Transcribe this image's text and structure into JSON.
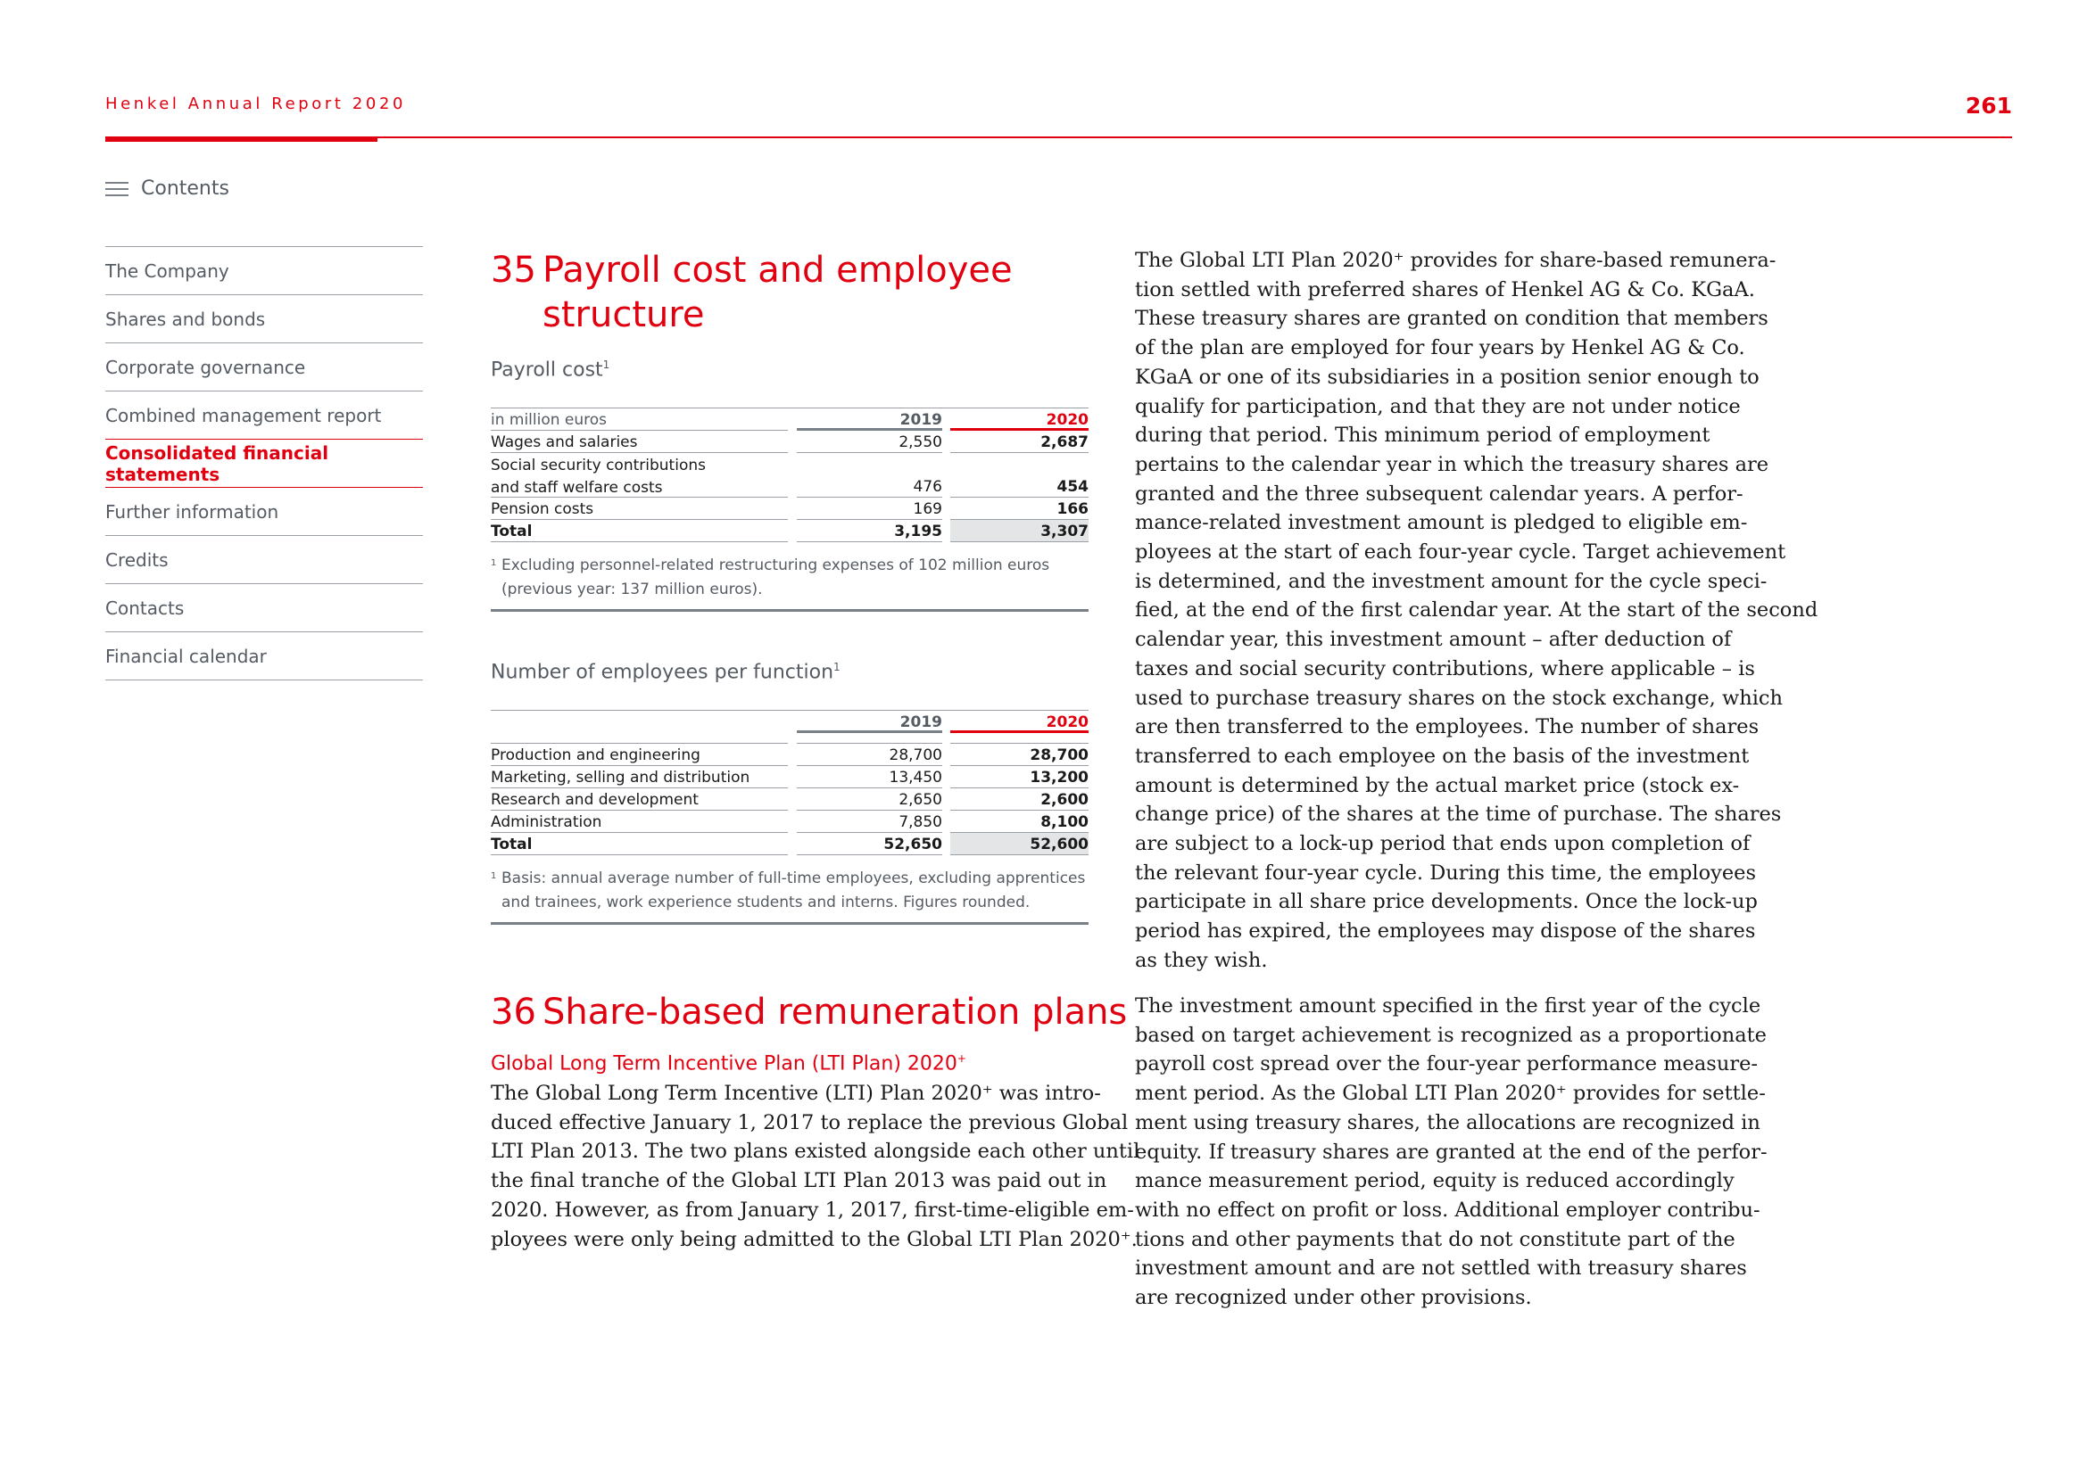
{
  "header": {
    "report_title": "Henkel Annual Report 2020",
    "page_number": "261"
  },
  "contents": {
    "label": "Contents"
  },
  "nav": {
    "items": [
      {
        "label": "The Company"
      },
      {
        "label": "Shares and bonds"
      },
      {
        "label": "Corporate governance"
      },
      {
        "label": "Combined management report"
      },
      {
        "label": "Consolidated financial statements"
      },
      {
        "label": "Further information"
      },
      {
        "label": "Credits"
      },
      {
        "label": "Contacts"
      },
      {
        "label": "Financial calendar"
      }
    ],
    "active_index": 4
  },
  "section35": {
    "number": "35",
    "title_line1": "Payroll cost and employee",
    "title_line2": "structure"
  },
  "payroll_table": {
    "title": "Payroll cost",
    "title_sup": "1",
    "unit_label": "in million euros",
    "col_2019": "2019",
    "col_2020": "2020",
    "rows": [
      {
        "label": "Wages and salaries",
        "v2019": "2,550",
        "v2020": "2,687"
      },
      {
        "label": "Social security contributions and staff welfare costs",
        "v2019": "476",
        "v2020": "454"
      },
      {
        "label": "Pension costs",
        "v2019": "169",
        "v2020": "166"
      },
      {
        "label": "Total",
        "v2019": "3,195",
        "v2020": "3,307"
      }
    ],
    "footnote_sup": "1",
    "footnote": "Excluding personnel-related restructuring expenses of 102 million euros (previous year: 137 million euros)."
  },
  "employees_table": {
    "title": "Number of employees per function",
    "title_sup": "1",
    "col_2019": "2019",
    "col_2020": "2020",
    "rows": [
      {
        "label": "Production and engineering",
        "v2019": "28,700",
        "v2020": "28,700"
      },
      {
        "label": "Marketing, selling and distribution",
        "v2019": "13,450",
        "v2020": "13,200"
      },
      {
        "label": "Research and development",
        "v2019": "2,650",
        "v2020": "2,600"
      },
      {
        "label": "Administration",
        "v2019": "7,850",
        "v2020": "8,100"
      },
      {
        "label": "Total",
        "v2019": "52,650",
        "v2020": "52,600"
      }
    ],
    "footnote_sup": "1",
    "footnote": "Basis: annual average number of full-time employees, excluding apprentices and trainees, work experience students and interns. Figures rounded."
  },
  "section36": {
    "number": "36",
    "title": "Share-based remuneration plans",
    "subheading": "Global Long Term Incentive Plan (LTI Plan) 2020",
    "subheading_sup": "+"
  },
  "text": {
    "left_lines": [
      "The Global Long Term Incentive (LTI) Plan 2020⁺ was intro-",
      "duced effective January 1, 2017 to replace the previous Global",
      "LTI Plan 2013. The two plans existed alongside each other until",
      "the final tranche of the Global LTI Plan 2013 was paid out in",
      "2020. However, as from January 1, 2017, first-time-eligible em-",
      "ployees were only being admitted to the Global LTI Plan 2020⁺."
    ],
    "right_p1_lines": [
      "The Global LTI Plan 2020⁺ provides for share-based remunera-",
      "tion settled with preferred shares of Henkel AG & Co. KGaA.",
      "These treasury shares are granted on condition that members",
      "of the plan are employed for four years by Henkel AG & Co.",
      "KGaA or one of its subsidiaries in a position senior enough to",
      "qualify for participation, and that they are not under notice",
      "during that period. This minimum period of employment",
      "pertains to the calendar year in which the treasury shares are",
      "granted and the three subsequent calendar years. A perfor-",
      "mance-related investment amount is pledged to eligible em-",
      "ployees at the start of each four-year cycle. Target achievement",
      "is determined, and the investment amount for the cycle speci-",
      "fied, at the end of the first calendar year. At the start of the second",
      "calendar year, this investment amount – after deduction of",
      "taxes and social security contributions, where applicable – is",
      "used to purchase treasury shares on the stock exchange, which",
      "are then transferred to the employees. The number of shares",
      "transferred to each employee on the basis of the investment",
      "amount is determined by the actual market price (stock ex-",
      "change price) of the shares at the time of purchase. The shares",
      "are subject to a lock-up period that ends upon completion of",
      "the relevant four-year cycle. During this time, the employees",
      "participate in all share price developments. Once the lock-up",
      "period has expired, the employees may dispose of the shares",
      "as they wish."
    ],
    "right_p2_lines": [
      "The investment amount specified in the first year of the cycle",
      "based on target achievement is recognized as a proportionate",
      "payroll cost spread over the four-year performance measure-",
      "ment period. As the Global LTI Plan 2020⁺ provides for settle-",
      "ment using treasury shares, the allocations are recognized in",
      "equity. If treasury shares are granted at the end of the perfor-",
      "mance measurement period, equity is reduced accordingly",
      "with no effect on profit or loss. Additional employer contribu-",
      "tions and other payments that do not constitute part of the",
      "investment amount and are not settled with treasury shares",
      "are recognized under other provisions."
    ]
  },
  "colors": {
    "accent": "#e1000f",
    "muted_text": "#555b63",
    "rule": "#7a8088",
    "highlight": "#e4e5e6"
  }
}
